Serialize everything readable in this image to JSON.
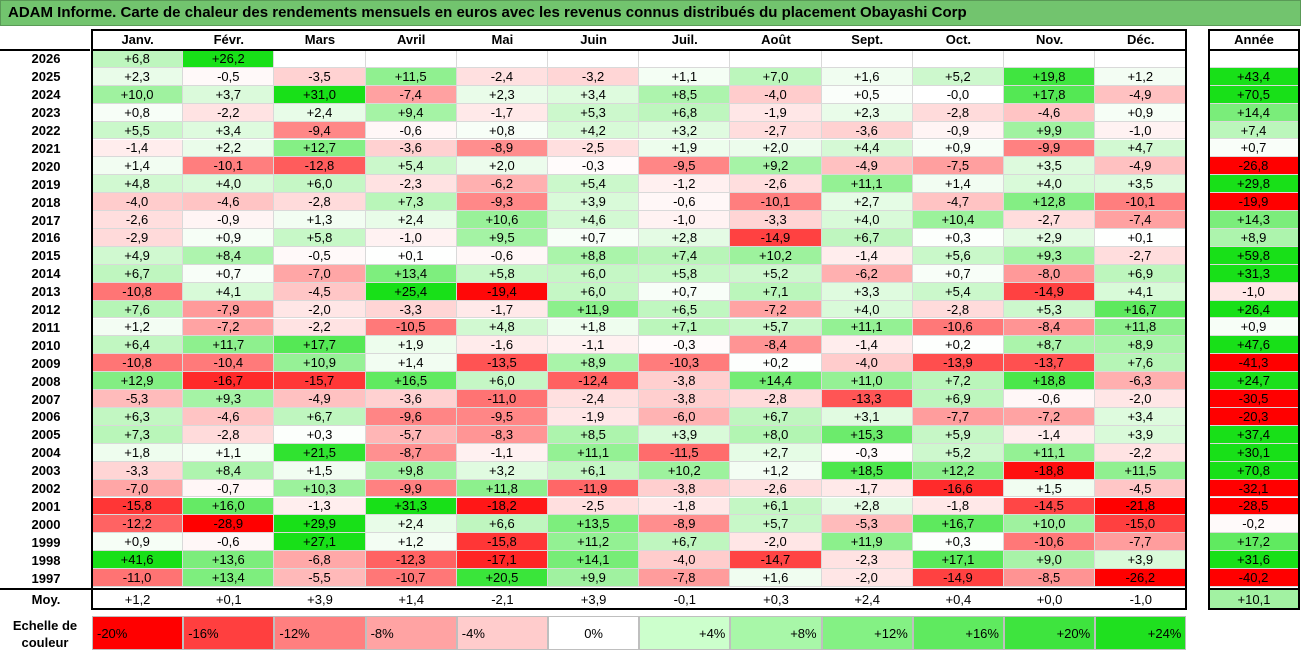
{
  "title": "ADAM Informe. Carte de chaleur des rendements mensuels en euros avec les revenus connus distribués du placement Obayashi Corp",
  "chart_data": {
    "type": "heatmap",
    "columns": [
      "Janv.",
      "Févr.",
      "Mars",
      "Avril",
      "Mai",
      "Juin",
      "Juil.",
      "Août",
      "Sept.",
      "Oct.",
      "Nov.",
      "Déc."
    ],
    "year_header": "Année",
    "rows": [
      {
        "label": "2026",
        "values": [
          "+6,8",
          "+26,2",
          "",
          "",
          "",
          "",
          "",
          "",
          "",
          "",
          "",
          ""
        ],
        "year": ""
      },
      {
        "label": "2025",
        "values": [
          "+2,3",
          "-0,5",
          "-3,5",
          "+11,5",
          "-2,4",
          "-3,2",
          "+1,1",
          "+7,0",
          "+1,6",
          "+5,2",
          "+19,8",
          "+1,2"
        ],
        "year": "+43,4"
      },
      {
        "label": "2024",
        "values": [
          "+10,0",
          "+3,7",
          "+31,0",
          "-7,4",
          "+2,3",
          "+3,4",
          "+8,5",
          "-4,0",
          "+0,5",
          "-0,0",
          "+17,8",
          "-4,9"
        ],
        "year": "+70,5"
      },
      {
        "label": "2023",
        "values": [
          "+0,8",
          "-2,2",
          "+2,4",
          "+9,4",
          "-1,7",
          "+5,3",
          "+6,8",
          "-1,9",
          "+2,3",
          "-2,8",
          "-4,6",
          "+0,9"
        ],
        "year": "+14,4"
      },
      {
        "label": "2022",
        "values": [
          "+5,5",
          "+3,4",
          "-9,4",
          "-0,6",
          "+0,8",
          "+4,2",
          "+3,2",
          "-2,7",
          "-3,6",
          "-0,9",
          "+9,9",
          "-1,0"
        ],
        "year": "+7,4"
      },
      {
        "label": "2021",
        "values": [
          "-1,4",
          "+2,2",
          "+12,7",
          "-3,6",
          "-8,9",
          "-2,5",
          "+1,9",
          "+2,0",
          "+4,4",
          "+0,9",
          "-9,9",
          "+4,7"
        ],
        "year": "+0,7"
      },
      {
        "label": "2020",
        "values": [
          "+1,4",
          "-10,1",
          "-12,8",
          "+5,4",
          "+2,0",
          "-0,3",
          "-9,5",
          "+9,2",
          "-4,9",
          "-7,5",
          "+3,5",
          "-4,9"
        ],
        "year": "-26,8"
      },
      {
        "label": "2019",
        "values": [
          "+4,8",
          "+4,0",
          "+6,0",
          "-2,3",
          "-6,2",
          "+5,4",
          "-1,2",
          "-2,6",
          "+11,1",
          "+1,4",
          "+4,0",
          "+3,5"
        ],
        "year": "+29,8"
      },
      {
        "label": "2018",
        "values": [
          "-4,0",
          "-4,6",
          "-2,8",
          "+7,3",
          "-9,3",
          "+3,9",
          "-0,6",
          "-10,1",
          "+2,7",
          "-4,7",
          "+12,8",
          "-10,1"
        ],
        "year": "-19,9"
      },
      {
        "label": "2017",
        "values": [
          "-2,6",
          "-0,9",
          "+1,3",
          "+2,4",
          "+10,6",
          "+4,6",
          "-1,0",
          "-3,3",
          "+4,0",
          "+10,4",
          "-2,7",
          "-7,4"
        ],
        "year": "+14,3"
      },
      {
        "label": "2016",
        "values": [
          "-2,9",
          "+0,9",
          "+5,8",
          "-1,0",
          "+9,5",
          "+0,7",
          "+2,8",
          "-14,9",
          "+6,7",
          "+0,3",
          "+2,9",
          "+0,1"
        ],
        "year": "+8,9"
      },
      {
        "label": "2015",
        "values": [
          "+4,9",
          "+8,4",
          "-0,5",
          "+0,1",
          "-0,6",
          "+8,8",
          "+7,4",
          "+10,2",
          "-1,4",
          "+5,6",
          "+9,3",
          "-2,7"
        ],
        "year": "+59,8"
      },
      {
        "label": "2014",
        "values": [
          "+6,7",
          "+0,7",
          "-7,0",
          "+13,4",
          "+5,8",
          "+6,0",
          "+5,8",
          "+5,2",
          "-6,2",
          "+0,7",
          "-8,0",
          "+6,9"
        ],
        "year": "+31,3"
      },
      {
        "label": "2013",
        "values": [
          "-10,8",
          "+4,1",
          "-4,5",
          "+25,4",
          "-19,4",
          "+6,0",
          "+0,7",
          "+7,1",
          "+3,3",
          "+5,4",
          "-14,9",
          "+4,1"
        ],
        "year": "-1,0"
      },
      {
        "label": "2012",
        "values": [
          "+7,6",
          "-7,9",
          "-2,0",
          "-3,3",
          "-1,7",
          "+11,9",
          "+6,5",
          "-7,2",
          "+4,0",
          "-2,8",
          "+5,3",
          "+16,7"
        ],
        "year": "+26,4"
      },
      {
        "label": "2011",
        "values": [
          "+1,2",
          "-7,2",
          "-2,2",
          "-10,5",
          "+4,8",
          "+1,8",
          "+7,1",
          "+5,7",
          "+11,1",
          "-10,6",
          "-8,4",
          "+11,8"
        ],
        "year": "+0,9"
      },
      {
        "label": "2010",
        "values": [
          "+6,4",
          "+11,7",
          "+17,7",
          "+1,9",
          "-1,6",
          "-1,1",
          "-0,3",
          "-8,4",
          "-1,4",
          "+0,2",
          "+8,7",
          "+8,9"
        ],
        "year": "+47,6"
      },
      {
        "label": "2009",
        "values": [
          "-10,8",
          "-10,4",
          "+10,9",
          "+1,4",
          "-13,5",
          "+8,9",
          "-10,3",
          "+0,2",
          "-4,0",
          "-13,9",
          "-13,7",
          "+7,6"
        ],
        "year": "-41,3"
      },
      {
        "label": "2008",
        "values": [
          "+12,9",
          "-16,7",
          "-15,7",
          "+16,5",
          "+6,0",
          "-12,4",
          "-3,8",
          "+14,4",
          "+11,0",
          "+7,2",
          "+18,8",
          "-6,3"
        ],
        "year": "+24,7"
      },
      {
        "label": "2007",
        "values": [
          "-5,3",
          "+9,3",
          "-4,9",
          "-3,6",
          "-11,0",
          "-2,4",
          "-3,8",
          "-2,8",
          "-13,3",
          "+6,9",
          "-0,6",
          "-2,0"
        ],
        "year": "-30,5"
      },
      {
        "label": "2006",
        "values": [
          "+6,3",
          "-4,6",
          "+6,7",
          "-9,6",
          "-9,5",
          "-1,9",
          "-6,0",
          "+6,7",
          "+3,1",
          "-7,7",
          "-7,2",
          "+3,4"
        ],
        "year": "-20,3"
      },
      {
        "label": "2005",
        "values": [
          "+7,3",
          "-2,8",
          "+0,3",
          "-5,7",
          "-8,3",
          "+8,5",
          "+3,9",
          "+8,0",
          "+15,3",
          "+5,9",
          "-1,4",
          "+3,9"
        ],
        "year": "+37,4"
      },
      {
        "label": "2004",
        "values": [
          "+1,8",
          "+1,1",
          "+21,5",
          "-8,7",
          "-1,1",
          "+11,1",
          "-11,5",
          "+2,7",
          "-0,3",
          "+5,2",
          "+11,1",
          "-2,2"
        ],
        "year": "+30,1"
      },
      {
        "label": "2003",
        "values": [
          "-3,3",
          "+8,4",
          "+1,5",
          "+9,8",
          "+3,2",
          "+6,1",
          "+10,2",
          "+1,2",
          "+18,5",
          "+12,2",
          "-18,8",
          "+11,5"
        ],
        "year": "+70,8"
      },
      {
        "label": "2002",
        "values": [
          "-7,0",
          "-0,7",
          "+10,3",
          "-9,9",
          "+11,8",
          "-11,9",
          "-3,8",
          "-2,6",
          "-1,7",
          "-16,6",
          "+1,5",
          "-4,5"
        ],
        "year": "-32,1"
      },
      {
        "label": "2001",
        "values": [
          "-15,8",
          "+16,0",
          "-1,3",
          "+31,3",
          "-18,2",
          "-2,5",
          "-1,8",
          "+6,1",
          "+2,8",
          "-1,8",
          "-14,5",
          "-21,8"
        ],
        "year": "-28,5"
      },
      {
        "label": "2000",
        "values": [
          "-12,2",
          "-28,9",
          "+29,9",
          "+2,4",
          "+6,6",
          "+13,5",
          "-8,9",
          "+5,7",
          "-5,3",
          "+16,7",
          "+10,0",
          "-15,0"
        ],
        "year": "-0,2"
      },
      {
        "label": "1999",
        "values": [
          "+0,9",
          "-0,6",
          "+27,1",
          "+1,2",
          "-15,8",
          "+11,2",
          "+6,7",
          "-2,0",
          "+11,9",
          "+0,3",
          "-10,6",
          "-7,7"
        ],
        "year": "+17,2"
      },
      {
        "label": "1998",
        "values": [
          "+41,6",
          "+13,6",
          "-6,8",
          "-12,3",
          "-17,1",
          "+14,1",
          "-4,0",
          "-14,7",
          "-2,3",
          "+17,1",
          "+9,0",
          "+3,9"
        ],
        "year": "+31,6"
      },
      {
        "label": "1997",
        "values": [
          "-11,0",
          "+13,4",
          "-5,5",
          "-10,7",
          "+20,5",
          "+9,9",
          "-7,8",
          "+1,6",
          "-2,0",
          "-14,9",
          "-8,5",
          "-26,2"
        ],
        "year": "-40,2"
      }
    ],
    "average": {
      "label": "Moy.",
      "values": [
        "+1,2",
        "+0,1",
        "+3,9",
        "+1,4",
        "-2,1",
        "+3,9",
        "-0,1",
        "+0,3",
        "+2,4",
        "+0,4",
        "+0,0",
        "-1,0"
      ],
      "year": "+10,1"
    },
    "legend": {
      "label_line1": "Echelle de",
      "label_line2": "couleur",
      "stops": [
        {
          "text": "-20%",
          "value": -20,
          "color": "#ff0000"
        },
        {
          "text": "-16%",
          "value": -16,
          "color": "#ff3f3f"
        },
        {
          "text": "-12%",
          "value": -12,
          "color": "#ff7f7f"
        },
        {
          "text": "-8%",
          "value": -8,
          "color": "#ffa3a3"
        },
        {
          "text": "-4%",
          "value": -4,
          "color": "#ffcccc"
        },
        {
          "text": "0%",
          "value": 0,
          "color": "#ffffff"
        },
        {
          "text": "+4%",
          "value": 4,
          "color": "#ccffcc"
        },
        {
          "text": "+8%",
          "value": 8,
          "color": "#a8f7a8"
        },
        {
          "text": "+12%",
          "value": 12,
          "color": "#84f184"
        },
        {
          "text": "+16%",
          "value": 16,
          "color": "#5fea5f"
        },
        {
          "text": "+20%",
          "value": 20,
          "color": "#3ee43e"
        },
        {
          "text": "+24%",
          "value": 24,
          "color": "#1fe01f"
        }
      ]
    }
  }
}
